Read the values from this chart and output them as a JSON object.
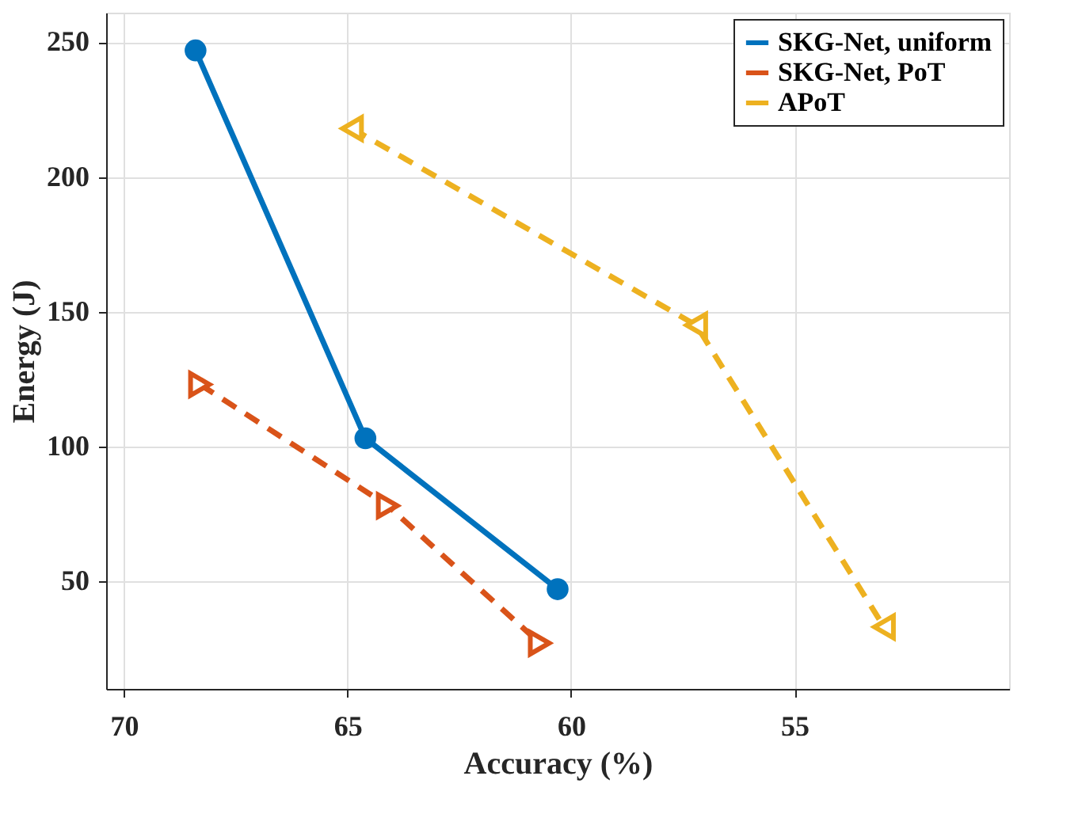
{
  "chart_data": {
    "type": "line",
    "xlabel": "Accuracy (%)",
    "ylabel": "Energy (J)",
    "xlim": [
      70.4,
      50.2
    ],
    "xticks": [
      70,
      65,
      60,
      55
    ],
    "ylim": [
      10,
      261
    ],
    "yticks": [
      50,
      100,
      150,
      200,
      250
    ],
    "grid": true,
    "legend": "top right",
    "series": [
      {
        "name": "SKG-Net, uniform",
        "color": "#0072bd",
        "marker": "circle",
        "line_style": "solid",
        "x": [
          68.4,
          64.6,
          60.3
        ],
        "values": [
          247,
          103,
          47
        ]
      },
      {
        "name": "SKG-Net, PoT",
        "color": "#d95319",
        "marker": "triangle-right",
        "line_style": "dashed",
        "x": [
          68.3,
          64.1,
          60.7
        ],
        "values": [
          123,
          78,
          27
        ]
      },
      {
        "name": "APoT",
        "color": "#edb120",
        "marker": "triangle-left",
        "line_style": "dashed",
        "x": [
          64.9,
          57.2,
          53.0
        ],
        "values": [
          218,
          145,
          33
        ]
      }
    ]
  }
}
